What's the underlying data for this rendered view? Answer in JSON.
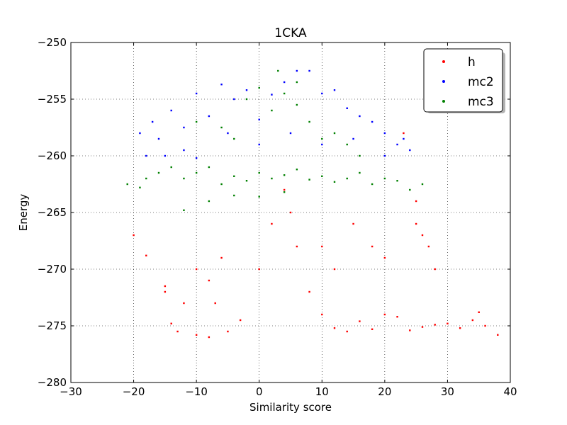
{
  "chart_data": {
    "type": "scatter",
    "title": "1CKA",
    "xlabel": "Similarity score",
    "ylabel": "Energy",
    "xlim": [
      -30,
      40
    ],
    "ylim": [
      -280,
      -250
    ],
    "xticks": [
      -30,
      -20,
      -10,
      0,
      10,
      20,
      30,
      40
    ],
    "yticks": [
      -280,
      -275,
      -270,
      -265,
      -260,
      -255,
      -250
    ],
    "xtick_labels": [
      "−30",
      "−20",
      "−10",
      "0",
      "10",
      "20",
      "30",
      "40"
    ],
    "ytick_labels": [
      "−280",
      "−275",
      "−270",
      "−265",
      "−260",
      "−255",
      "−250"
    ],
    "grid": true,
    "legend_position": "top-right",
    "series": [
      {
        "name": "h",
        "color": "#ff0000",
        "points": [
          [
            -20,
            -267
          ],
          [
            -18,
            -268.8
          ],
          [
            -15,
            -271.5
          ],
          [
            -15,
            -272
          ],
          [
            -14,
            -274.8
          ],
          [
            -13,
            -275.5
          ],
          [
            -10,
            -275.8
          ],
          [
            -8,
            -276
          ],
          [
            -7,
            -273
          ],
          [
            -5,
            -275.5
          ],
          [
            -3,
            -274.5
          ],
          [
            0,
            -270
          ],
          [
            2,
            -266
          ],
          [
            4,
            -263
          ],
          [
            6,
            -268
          ],
          [
            8,
            -272
          ],
          [
            10,
            -274
          ],
          [
            12,
            -275.2
          ],
          [
            14,
            -275.5
          ],
          [
            16,
            -274.6
          ],
          [
            18,
            -275.3
          ],
          [
            20,
            -274
          ],
          [
            22,
            -274.2
          ],
          [
            24,
            -275.4
          ],
          [
            26,
            -275.1
          ],
          [
            28,
            -274.9
          ],
          [
            30,
            -274.8
          ],
          [
            32,
            -275.2
          ],
          [
            34,
            -274.5
          ],
          [
            35,
            -273.8
          ],
          [
            36,
            -275
          ],
          [
            38,
            -275.8
          ],
          [
            23,
            -258
          ],
          [
            25,
            -264
          ],
          [
            25,
            -266
          ],
          [
            26,
            -267
          ],
          [
            27,
            -268
          ],
          [
            28,
            -270
          ],
          [
            10,
            -268
          ],
          [
            12,
            -270
          ],
          [
            -10,
            -270
          ],
          [
            -8,
            -271
          ],
          [
            -12,
            -273
          ],
          [
            -6,
            -269
          ],
          [
            5,
            -265
          ],
          [
            15,
            -266
          ],
          [
            18,
            -268
          ],
          [
            20,
            -269
          ]
        ]
      },
      {
        "name": "mc2",
        "color": "#0000ff",
        "points": [
          [
            -19,
            -258
          ],
          [
            -18,
            -260
          ],
          [
            -17,
            -257
          ],
          [
            -16,
            -258.5
          ],
          [
            -14,
            -256
          ],
          [
            -12,
            -257.5
          ],
          [
            -10,
            -254.5
          ],
          [
            -8,
            -256.5
          ],
          [
            -6,
            -253.7
          ],
          [
            -4,
            -255
          ],
          [
            -2,
            -254.2
          ],
          [
            0,
            -256.8
          ],
          [
            2,
            -254.6
          ],
          [
            4,
            -253.5
          ],
          [
            6,
            -252.5
          ],
          [
            8,
            -252.5
          ],
          [
            10,
            -254.5
          ],
          [
            12,
            -254.2
          ],
          [
            14,
            -255.8
          ],
          [
            16,
            -256.5
          ],
          [
            18,
            -257
          ],
          [
            20,
            -258
          ],
          [
            22,
            -259
          ],
          [
            23,
            -258.5
          ],
          [
            24,
            -259.5
          ],
          [
            -15,
            -260
          ],
          [
            -12,
            -259.5
          ],
          [
            -10,
            -260.2
          ],
          [
            5,
            -258
          ],
          [
            10,
            -259
          ],
          [
            15,
            -258.5
          ],
          [
            20,
            -260
          ],
          [
            -5,
            -258
          ],
          [
            0,
            -259
          ]
        ]
      },
      {
        "name": "mc3",
        "color": "#008000",
        "points": [
          [
            -21,
            -262.5
          ],
          [
            -19,
            -262.8
          ],
          [
            -18,
            -262
          ],
          [
            -16,
            -261.5
          ],
          [
            -14,
            -261
          ],
          [
            -12,
            -262
          ],
          [
            -10,
            -261.5
          ],
          [
            -8,
            -261
          ],
          [
            -6,
            -262.5
          ],
          [
            -4,
            -261.8
          ],
          [
            -2,
            -262.2
          ],
          [
            0,
            -261.5
          ],
          [
            2,
            -262
          ],
          [
            4,
            -261.7
          ],
          [
            6,
            -261.2
          ],
          [
            8,
            -262.1
          ],
          [
            10,
            -261.8
          ],
          [
            12,
            -262.3
          ],
          [
            14,
            -262
          ],
          [
            16,
            -261.5
          ],
          [
            18,
            -262.5
          ],
          [
            20,
            -262
          ],
          [
            22,
            -262.2
          ],
          [
            24,
            -263
          ],
          [
            26,
            -262.5
          ],
          [
            -12,
            -264.8
          ],
          [
            -8,
            -264
          ],
          [
            -4,
            -263.5
          ],
          [
            0,
            -263.6
          ],
          [
            4,
            -263.2
          ],
          [
            -10,
            -257
          ],
          [
            -6,
            -257.5
          ],
          [
            -2,
            -255
          ],
          [
            0,
            -254
          ],
          [
            2,
            -256
          ],
          [
            4,
            -254.5
          ],
          [
            6,
            -255.5
          ],
          [
            8,
            -257
          ],
          [
            10,
            -258.5
          ],
          [
            12,
            -258
          ],
          [
            14,
            -259
          ],
          [
            16,
            -260
          ],
          [
            3,
            -252.5
          ],
          [
            6,
            -253.5
          ],
          [
            -4,
            -258.5
          ]
        ]
      }
    ]
  }
}
